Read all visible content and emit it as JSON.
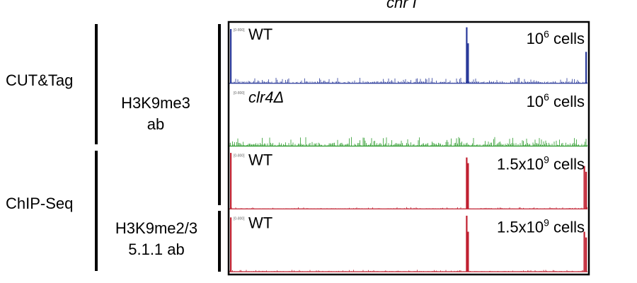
{
  "title": "chr I",
  "groups": {
    "cut_tag": "CUT&Tag",
    "chip_seq": "ChIP-Seq"
  },
  "antibodies": {
    "h3k9me3": [
      "H3K9me3",
      "ab"
    ],
    "h3k9me23": [
      "H3K9me2/3",
      "5.1.1 ab"
    ]
  },
  "chart_data": {
    "type": "area",
    "title": "chr I",
    "tracks": [
      {
        "name": "WT",
        "cells_label": "10",
        "cells_exp": "6",
        "cells_suffix": " cells",
        "scale_label": "[0-800]",
        "color": "#2a3a9a",
        "peaks": [
          {
            "pos": 0.0,
            "height": 0.95
          },
          {
            "pos": 0.664,
            "height": 0.98
          },
          {
            "pos": 0.668,
            "height": 0.7
          },
          {
            "pos": 1.0,
            "height": 0.55
          }
        ],
        "baseline_noise": 0.06
      },
      {
        "name": "clr4Δ",
        "name_parts": [
          "clr4",
          "Δ"
        ],
        "cells_label": "10",
        "cells_exp": "6",
        "cells_suffix": " cells",
        "scale_label": "[0-800]",
        "color": "#2a9a2a",
        "peaks": [],
        "baseline_noise": 0.1
      },
      {
        "name": "WT",
        "cells_label": "1.5x10",
        "cells_exp": "9",
        "cells_suffix": " cells",
        "scale_label": "[0-800]",
        "color": "#c02030",
        "peaks": [
          {
            "pos": 0.0,
            "height": 0.98
          },
          {
            "pos": 0.664,
            "height": 0.9
          },
          {
            "pos": 0.668,
            "height": 0.8
          },
          {
            "pos": 0.995,
            "height": 0.75
          },
          {
            "pos": 1.0,
            "height": 0.65
          }
        ],
        "baseline_noise": 0.02
      },
      {
        "name": "WT",
        "cells_label": "1.5x10",
        "cells_exp": "9",
        "cells_suffix": " cells",
        "scale_label": "[0-800]",
        "color": "#c02030",
        "peaks": [
          {
            "pos": 0.0,
            "height": 0.95
          },
          {
            "pos": 0.664,
            "height": 0.98
          },
          {
            "pos": 0.668,
            "height": 0.7
          },
          {
            "pos": 0.995,
            "height": 0.7
          },
          {
            "pos": 1.0,
            "height": 0.6
          }
        ],
        "baseline_noise": 0.02
      }
    ]
  }
}
